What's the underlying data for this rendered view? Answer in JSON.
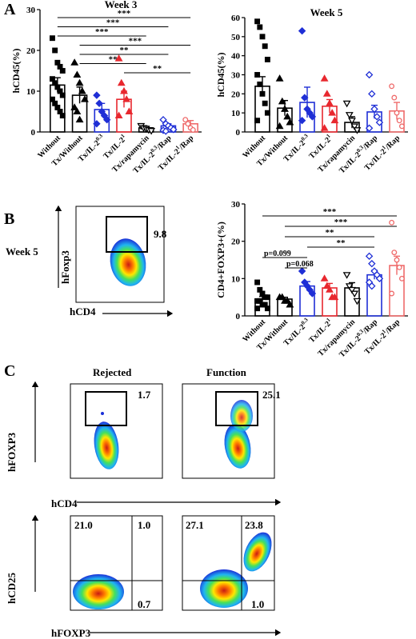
{
  "panel_letters": {
    "a": "A",
    "b": "B",
    "c": "C"
  },
  "colors": {
    "black": "#000000",
    "blue": "#1f2fd6",
    "red": "#e8282f",
    "pink": "#ef6b6b"
  },
  "group_labels": [
    "Without",
    "Tx/Without",
    "Tx/IL-2^0.3",
    "Tx/IL-2^1",
    "Tx/rapamycin",
    "Tx/IL-2^0.3/Rap",
    "Tx/IL-2^1/Rap"
  ],
  "chart_data": [
    {
      "id": "a_week3",
      "type": "scatter-bar",
      "title": "Week 3",
      "ylabel": "hCD45(%)",
      "ylim": [
        0,
        30
      ],
      "yticks": [
        0,
        10,
        20,
        30
      ],
      "categories": [
        "Without",
        "Tx/Without",
        "Tx/IL-2^0.3",
        "Tx/IL-2^1",
        "Tx/rapamycin",
        "Tx/IL-2^0.3/Rap",
        "Tx/IL-2^1/Rap"
      ],
      "means": [
        11.5,
        9,
        5.5,
        8,
        1,
        1.5,
        2
      ],
      "sems": [
        1.8,
        2,
        1.5,
        2,
        0.4,
        0.5,
        0.8
      ],
      "points": [
        [
          23,
          20,
          17,
          16,
          15,
          13,
          12,
          11,
          10,
          9,
          8,
          7,
          6,
          5,
          4
        ],
        [
          17,
          14,
          12,
          10,
          8,
          6,
          5,
          3
        ],
        [
          9,
          7,
          5,
          4,
          3,
          2
        ],
        [
          18,
          12,
          10,
          8,
          5,
          4
        ],
        [
          1.5,
          1,
          0.8,
          0.5,
          0.3
        ],
        [
          3,
          2,
          1.5,
          1,
          0.6,
          0.4,
          0.2
        ],
        [
          3,
          2,
          1,
          0.5
        ]
      ],
      "significance": [
        {
          "from": 0,
          "to": 6,
          "label": "***"
        },
        {
          "from": 0,
          "to": 5,
          "label": "***"
        },
        {
          "from": 0,
          "to": 4,
          "label": "***"
        },
        {
          "from": 1,
          "to": 6,
          "label": "***"
        },
        {
          "from": 1,
          "to": 5,
          "label": "**"
        },
        {
          "from": 1,
          "to": 4,
          "label": "**"
        },
        {
          "from": 3,
          "to": 6,
          "label": "**"
        }
      ]
    },
    {
      "id": "a_week5",
      "type": "scatter-bar",
      "title": "Week 5",
      "ylabel": "hCD45(%)",
      "ylim": [
        0,
        60
      ],
      "yticks": [
        0,
        10,
        20,
        30,
        40,
        50,
        60
      ],
      "categories": [
        "Without",
        "Tx/Without",
        "Tx/IL-2^0.3",
        "Tx/IL-2^1",
        "Tx/rapamycin",
        "Tx/IL-2^0.3/Rap",
        "Tx/IL-2^1/Rap"
      ],
      "means": [
        24,
        12.5,
        15.5,
        13.5,
        5,
        10.5,
        11
      ],
      "sems": [
        5,
        4,
        8,
        3.5,
        3,
        3.5,
        4.5
      ],
      "points": [
        [
          58,
          55,
          50,
          45,
          38,
          30,
          25,
          20,
          15,
          10,
          6
        ],
        [
          28,
          16,
          12,
          8,
          5,
          3
        ],
        [
          53,
          18,
          12,
          10,
          8,
          6
        ],
        [
          28,
          20,
          15,
          10,
          6,
          2
        ],
        [
          15,
          9,
          6,
          3,
          1
        ],
        [
          30,
          20,
          12,
          8,
          5,
          2
        ],
        [
          24,
          18,
          10,
          6,
          3
        ]
      ]
    },
    {
      "id": "b_treg",
      "type": "scatter-bar",
      "ylabel": "CD4+FOXP3+(%)",
      "ylim": [
        0,
        30
      ],
      "yticks": [
        0,
        10,
        20,
        30
      ],
      "categories": [
        "Without",
        "Tx/Without",
        "Tx/IL-2^0.3",
        "Tx/IL-2^1",
        "Tx/rapamycin",
        "Tx/IL-2^0.3/Rap",
        "Tx/IL-2^1/Rap"
      ],
      "means": [
        4.5,
        4.5,
        8,
        7.5,
        7.5,
        11,
        13.5
      ],
      "sems": [
        0.7,
        0.5,
        1.2,
        1.2,
        1.4,
        1.2,
        2.5
      ],
      "points": [
        [
          9,
          7,
          6,
          5,
          5,
          4,
          4,
          3,
          3,
          2,
          2
        ],
        [
          5,
          5,
          4,
          4,
          3
        ],
        [
          12,
          9,
          8,
          7,
          6
        ],
        [
          10,
          8,
          7,
          5,
          5
        ],
        [
          11,
          8,
          7,
          6,
          4
        ],
        [
          16,
          14,
          12,
          11,
          10,
          9,
          8
        ],
        [
          25,
          17,
          15,
          13,
          10,
          6
        ]
      ],
      "significance": [
        {
          "from": 0,
          "to": 6,
          "label": "***"
        },
        {
          "from": 1,
          "to": 6,
          "label": "***"
        },
        {
          "from": 1,
          "to": 5,
          "label": "**"
        },
        {
          "from": 2,
          "to": 5,
          "label": "**"
        },
        {
          "from": 0,
          "to": 2,
          "label": "p=0.099"
        },
        {
          "from": 1,
          "to": 2,
          "label": "p=0.068"
        }
      ]
    }
  ],
  "flow": {
    "b_week": "Week 5",
    "b_gate": "9.8",
    "b_xaxis": "hCD4",
    "b_yaxis": "hFoxp3",
    "c_rejected": "Rejected",
    "c_function": "Function",
    "c_gate_rejected": "1.7",
    "c_gate_function": "25.1",
    "c_y_top": "hFOXP3",
    "c_x_top": "hCD4",
    "c_y_bottom": "hCD25",
    "c_x_bottom": "hFOXP3",
    "c_quad_rejected": {
      "ul": "21.0",
      "ur": "1.0",
      "lr": "0.7"
    },
    "c_quad_function": {
      "ul": "27.1",
      "ur": "23.8",
      "lr": "1.0"
    }
  }
}
